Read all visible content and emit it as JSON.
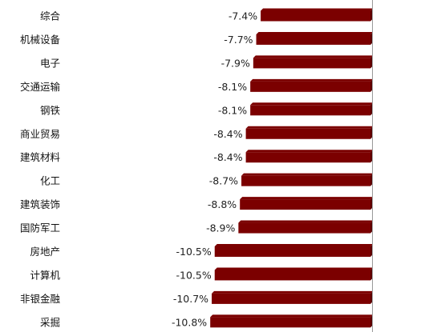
{
  "chart_data": {
    "type": "bar",
    "orientation": "horizontal",
    "categories": [
      "综合",
      "机械设备",
      "电子",
      "交通运输",
      "钢铁",
      "商业贸易",
      "建筑材料",
      "化工",
      "建筑装饰",
      "国防军工",
      "房地产",
      "计算机",
      "非银金融",
      "采掘"
    ],
    "values": [
      -7.4,
      -7.7,
      -7.9,
      -8.1,
      -8.1,
      -8.4,
      -8.4,
      -8.7,
      -8.8,
      -8.9,
      -10.5,
      -10.5,
      -10.7,
      -10.8
    ],
    "data_labels": [
      "-7.4%",
      "-7.7%",
      "-7.9%",
      "-8.1%",
      "-8.1%",
      "-8.4%",
      "-8.4%",
      "-8.7%",
      "-8.8%",
      "-8.9%",
      "-10.5%",
      "-10.5%",
      "-10.7%",
      "-10.8%"
    ],
    "unit": "%",
    "xlim": [
      -15.9,
      0
    ],
    "bar_color": "#7b0000",
    "bar_side_color": "#5a0000",
    "axis_color": "#999999",
    "grid": false,
    "legend": "none",
    "title": "",
    "xlabel": "",
    "ylabel": ""
  }
}
